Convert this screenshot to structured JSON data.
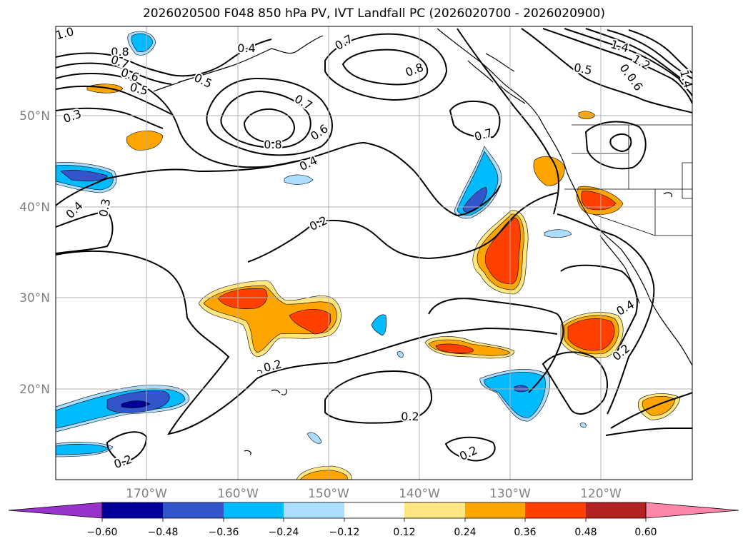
{
  "title": "2026020500 F048 850 hPa PV, IVT Landfall PC (2026020700 - 2026020900)",
  "lat_labels": [
    "50°N",
    "40°N",
    "30°N",
    "20°N"
  ],
  "lon_labels": [
    "170°W",
    "160°W",
    "150°W",
    "140°W",
    "130°W",
    "120°W"
  ],
  "colorbar": {
    "colors": [
      "#9933cc",
      "#000099",
      "#3355cc",
      "#00bbff",
      "#aaddff",
      "#ffffff",
      "#ffe680",
      "#ffa500",
      "#ff4000",
      "#b22222",
      "#ff88aa"
    ],
    "tick_labels": [
      "−0.60",
      "−0.48",
      "−0.36",
      "−0.24",
      "−0.12",
      "0.12",
      "0.24",
      "0.36",
      "0.48",
      "0.60"
    ]
  },
  "contour_labels": [
    "1.0",
    "0.8",
    "0.7",
    "0.6",
    "0.5",
    "0.4",
    "0.5",
    "0.7",
    "0.8",
    "0.7",
    "0.8",
    "0.6",
    "0.4",
    "0.7",
    "0.5",
    "1.4",
    "1.2",
    "0.8",
    "0.6",
    "1.4",
    "0.3",
    "0.4",
    "0.3",
    "0.2",
    "0.2",
    "0.2",
    "0.2",
    "0.2",
    "0.4",
    "0.2"
  ]
}
